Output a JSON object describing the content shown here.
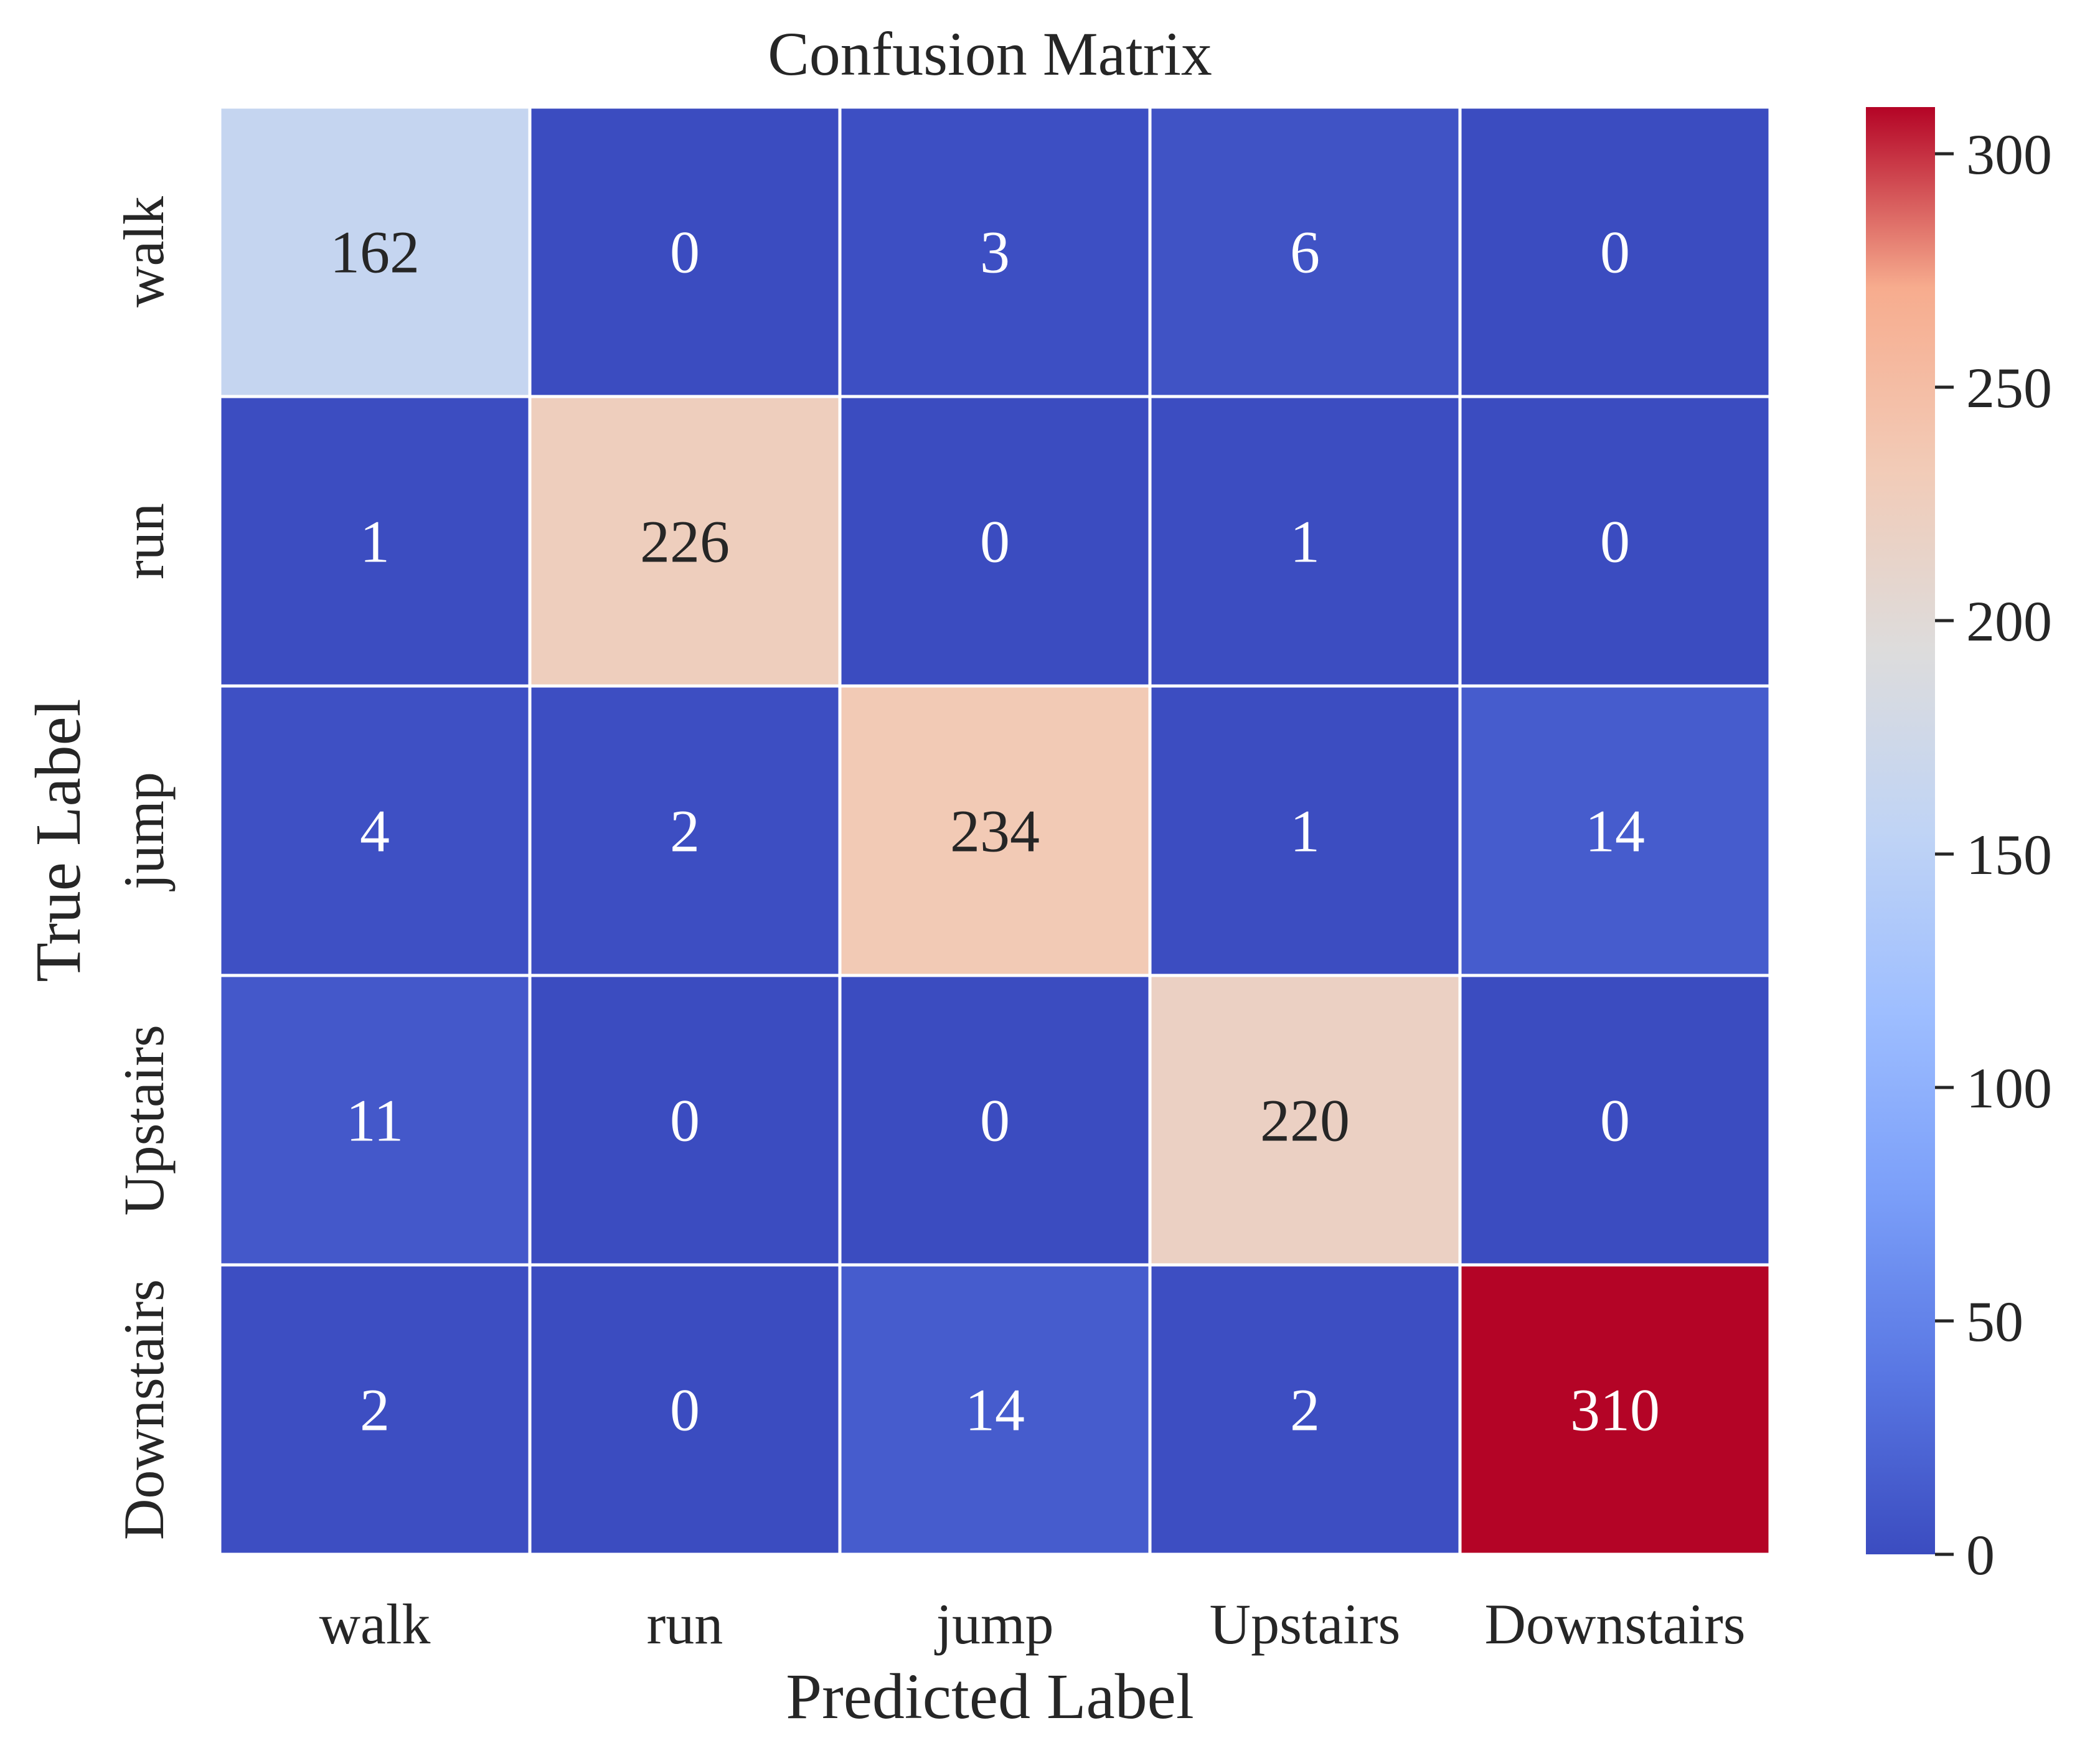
{
  "chart_data": {
    "type": "heatmap",
    "title": "Confusion Matrix",
    "xlabel": "Predicted Label",
    "ylabel": "True Label",
    "x_categories": [
      "walk",
      "run",
      "jump",
      "Upstairs",
      "Downstairs"
    ],
    "y_categories": [
      "walk",
      "run",
      "jump",
      "Upstairs",
      "Downstairs"
    ],
    "values": [
      [
        162,
        0,
        3,
        6,
        0
      ],
      [
        1,
        226,
        0,
        1,
        0
      ],
      [
        4,
        2,
        234,
        1,
        14
      ],
      [
        11,
        0,
        0,
        220,
        0
      ],
      [
        2,
        0,
        14,
        2,
        310
      ]
    ],
    "colormap": "coolwarm",
    "colorbar": {
      "min": 0,
      "max": 310,
      "ticks": [
        0,
        50,
        100,
        150,
        200,
        250,
        300
      ],
      "tick_labels": [
        "0",
        "50",
        "100",
        "150",
        "200",
        "250",
        "300"
      ]
    },
    "colors": {
      "cell_border": "#ffffff",
      "dark_text": "#262626",
      "light_text": "#ffffff",
      "axis_text": "#262626"
    }
  }
}
